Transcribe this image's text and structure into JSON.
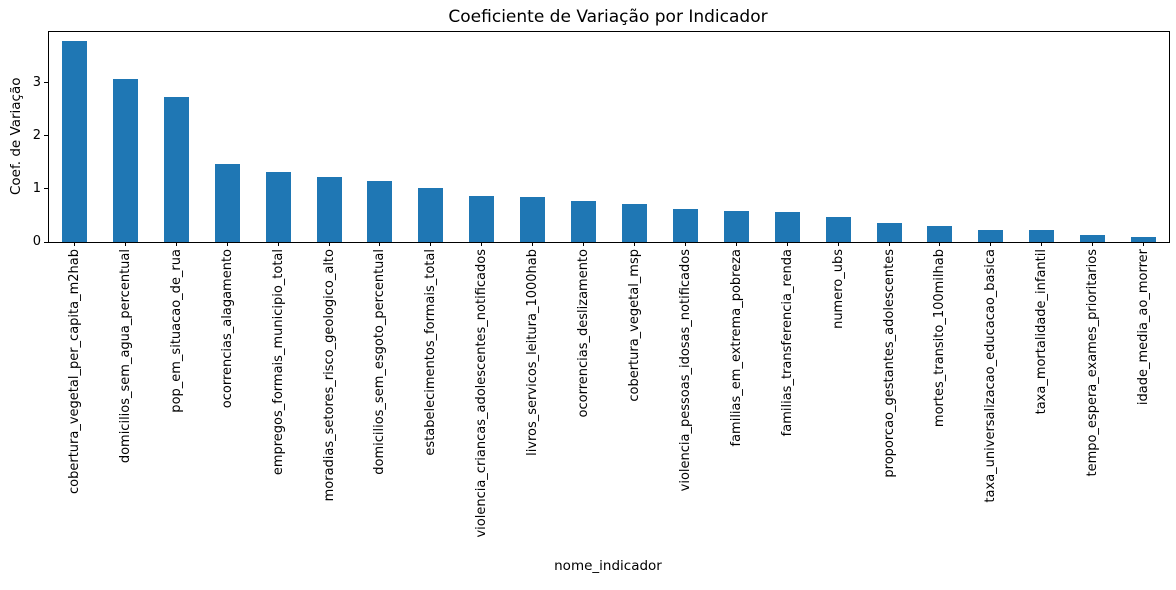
{
  "chart_data": {
    "type": "bar",
    "title": "Coeficiente de Variação por Indicador",
    "xlabel": "nome_indicador",
    "ylabel": "Coef. de Variação",
    "legend": "none",
    "grid": false,
    "bar_color": "#1f77b4",
    "tick_label_rotation": 90,
    "ylim": [
      0,
      3.95
    ],
    "yticks": [
      0,
      1,
      2,
      3
    ],
    "categories": [
      "cobertura_vegetal_per_capita_m2hab",
      "domicilios_sem_agua_percentual",
      "pop_em_situacao_de_rua",
      "ocorrencias_alagamento",
      "empregos_formais_municipio_total",
      "moradias_setores_risco_geologico_alto",
      "domicilios_sem_esgoto_percentual",
      "estabelecimentos_formais_total",
      "violencia_criancas_adolescentes_notificados",
      "livros_servicos_leitura_1000hab",
      "ocorrencias_deslizamento",
      "cobertura_vegetal_msp",
      "violencia_pessoas_idosas_notificados",
      "familias_em_extrema_pobreza",
      "familias_transferencia_renda",
      "numero_ubs",
      "proporcao_gestantes_adolescentes",
      "mortes_transito_100milhab",
      "taxa_universalizacao_educacao_basica",
      "taxa_mortalidade_infantil",
      "tempo_espera_exames_prioritarios",
      "idade_media_ao_morrer"
    ],
    "values": [
      3.78,
      3.06,
      2.72,
      1.47,
      1.31,
      1.23,
      1.15,
      1.01,
      0.86,
      0.84,
      0.78,
      0.72,
      0.62,
      0.59,
      0.56,
      0.47,
      0.36,
      0.3,
      0.23,
      0.22,
      0.13,
      0.09
    ]
  }
}
